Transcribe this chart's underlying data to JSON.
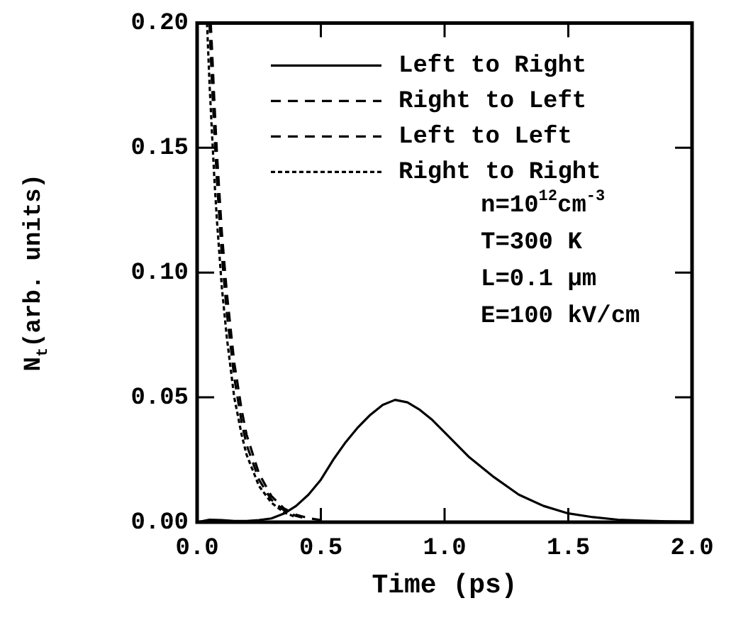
{
  "chart_data": {
    "type": "line",
    "xlabel": "Time (ps)",
    "ylabel": "N$_{t}$(arb. units)",
    "xlim": [
      0,
      2
    ],
    "ylim": [
      0,
      0.2
    ],
    "xticks": [
      {
        "value": 0,
        "label": "0.0"
      },
      {
        "value": 0.5,
        "label": "0.5"
      },
      {
        "value": 1,
        "label": "1.0"
      },
      {
        "value": 1.5,
        "label": "1.5"
      },
      {
        "value": 2,
        "label": "2.0"
      }
    ],
    "yticks": [
      {
        "value": 0,
        "label": "0.00"
      },
      {
        "value": 0.05,
        "label": "0.05"
      },
      {
        "value": 0.1,
        "label": "0.10"
      },
      {
        "value": 0.15,
        "label": "0.15"
      },
      {
        "value": 0.2,
        "label": "0.20"
      }
    ],
    "grid": false,
    "legend": "top right",
    "marker": "none",
    "annotations": [
      "n=10$^{12}$cm$^{-3}$",
      "T=300 K",
      "L=0.1 μm",
      "E=100 kV/cm"
    ],
    "series": [
      {
        "name": "Left to Right",
        "color": "#000000",
        "line_style": "solid",
        "x": [
          0,
          0.05,
          0.1,
          0.15,
          0.2,
          0.25,
          0.3,
          0.35,
          0.4,
          0.45,
          0.5,
          0.55,
          0.6,
          0.65,
          0.7,
          0.75,
          0.8,
          0.85,
          0.9,
          0.95,
          1.0,
          1.1,
          1.2,
          1.3,
          1.4,
          1.5,
          1.6,
          1.7,
          1.8,
          1.9,
          2.0
        ],
        "values": [
          0,
          0.001,
          0.0008,
          0.0005,
          0.0005,
          0.0008,
          0.0015,
          0.0034,
          0.0065,
          0.011,
          0.017,
          0.025,
          0.032,
          0.038,
          0.043,
          0.047,
          0.049,
          0.048,
          0.045,
          0.041,
          0.036,
          0.026,
          0.018,
          0.011,
          0.0065,
          0.0035,
          0.002,
          0.001,
          0.0006,
          0.0003,
          0.0002
        ]
      },
      {
        "name": "Right to Left",
        "color": "#000000",
        "line_style": "dashed",
        "x": [
          0.055,
          0.06,
          0.07,
          0.08,
          0.1,
          0.12,
          0.15,
          0.18,
          0.2,
          0.25,
          0.3,
          0.35,
          0.4,
          0.45,
          0.5
        ],
        "values": [
          0.2,
          0.19,
          0.168,
          0.148,
          0.116,
          0.092,
          0.064,
          0.045,
          0.035,
          0.0195,
          0.0105,
          0.0056,
          0.003,
          0.0016,
          0.0008
        ]
      },
      {
        "name": "Left to Left",
        "color": "#000000",
        "line_style": "dashed",
        "x": [
          0.05,
          0.06,
          0.07,
          0.08,
          0.1,
          0.12,
          0.15,
          0.18,
          0.2,
          0.25,
          0.3,
          0.35,
          0.4,
          0.45
        ],
        "values": [
          0.2,
          0.176,
          0.156,
          0.137,
          0.107,
          0.084,
          0.058,
          0.04,
          0.031,
          0.017,
          0.009,
          0.0048,
          0.0025,
          0.0013
        ]
      },
      {
        "name": "Right to Right",
        "color": "#000000",
        "line_style": "dotted",
        "x": [
          0.04,
          0.05,
          0.06,
          0.07,
          0.08,
          0.1,
          0.12,
          0.15,
          0.18,
          0.2,
          0.25,
          0.3,
          0.35,
          0.4
        ],
        "values": [
          0.2,
          0.176,
          0.156,
          0.137,
          0.121,
          0.094,
          0.074,
          0.05,
          0.035,
          0.027,
          0.0145,
          0.0078,
          0.004,
          0.002
        ]
      }
    ]
  }
}
